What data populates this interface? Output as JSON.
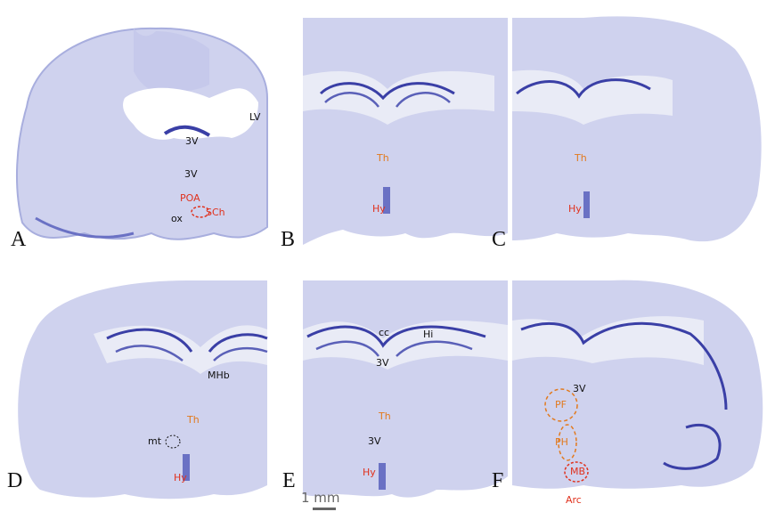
{
  "colors": {
    "tissue": "#cdd0ec",
    "tissue_dark": "#9ea5d8",
    "stain": "#3a3fa6",
    "white_matter": "#e9ebf6",
    "label_black": "#111111",
    "label_orange": "#e27a1e",
    "label_red": "#e0321e"
  },
  "panels": [
    {
      "letter": "A",
      "labels": [
        "LV",
        "3V",
        "3V",
        "POA",
        "SCh",
        "ox"
      ]
    },
    {
      "letter": "B",
      "labels": [
        "Th",
        "Hy"
      ]
    },
    {
      "letter": "C",
      "labels": [
        "Th",
        "Hy"
      ]
    },
    {
      "letter": "D",
      "labels": [
        "MHb",
        "Th",
        "mt",
        "Hy"
      ]
    },
    {
      "letter": "E",
      "labels": [
        "cc",
        "Hi",
        "3V",
        "Th",
        "3V",
        "Hy"
      ]
    },
    {
      "letter": "F",
      "labels": [
        "3V",
        "PF",
        "PH",
        "MB",
        "Arc"
      ]
    }
  ],
  "scale_bar": {
    "label": "1 mm"
  }
}
